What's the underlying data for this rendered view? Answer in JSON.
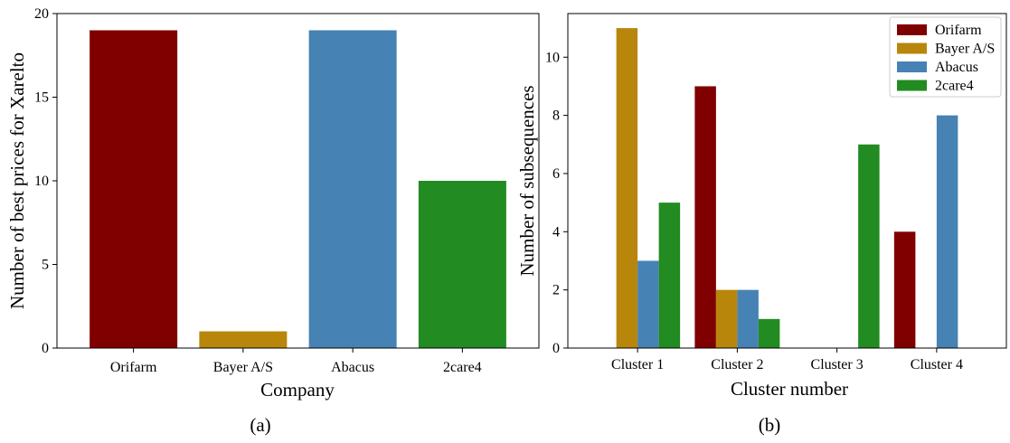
{
  "chart_data": [
    {
      "type": "bar",
      "caption": "(a)",
      "xlabel": "Company",
      "ylabel": "Number of best prices for Xarelto",
      "categories": [
        "Orifarm",
        "Bayer A/S",
        "Abacus",
        "2care4"
      ],
      "values": [
        19,
        1,
        19,
        10
      ],
      "colors": [
        "#800000",
        "#b8860b",
        "#4682b4",
        "#228b22"
      ],
      "ylim": [
        0,
        20
      ],
      "yticks": [
        0,
        5,
        10,
        15,
        20
      ],
      "grid": false
    },
    {
      "type": "bar",
      "caption": "(b)",
      "xlabel": "Cluster number",
      "ylabel": "Number of subsequences",
      "categories": [
        "Cluster 1",
        "Cluster 2",
        "Cluster 3",
        "Cluster 4"
      ],
      "series": [
        {
          "name": "Orifarm",
          "color": "#800000",
          "values": [
            0,
            9,
            0,
            4
          ]
        },
        {
          "name": "Bayer A/S",
          "color": "#b8860b",
          "values": [
            11,
            2,
            0,
            0
          ]
        },
        {
          "name": "Abacus",
          "color": "#4682b4",
          "values": [
            3,
            2,
            0,
            8
          ]
        },
        {
          "name": "2care4",
          "color": "#228b22",
          "values": [
            5,
            1,
            7,
            0
          ]
        }
      ],
      "ylim": [
        0,
        11.5
      ],
      "yticks": [
        0,
        2,
        4,
        6,
        8,
        10
      ],
      "legend": "top-right",
      "grid": false
    }
  ]
}
